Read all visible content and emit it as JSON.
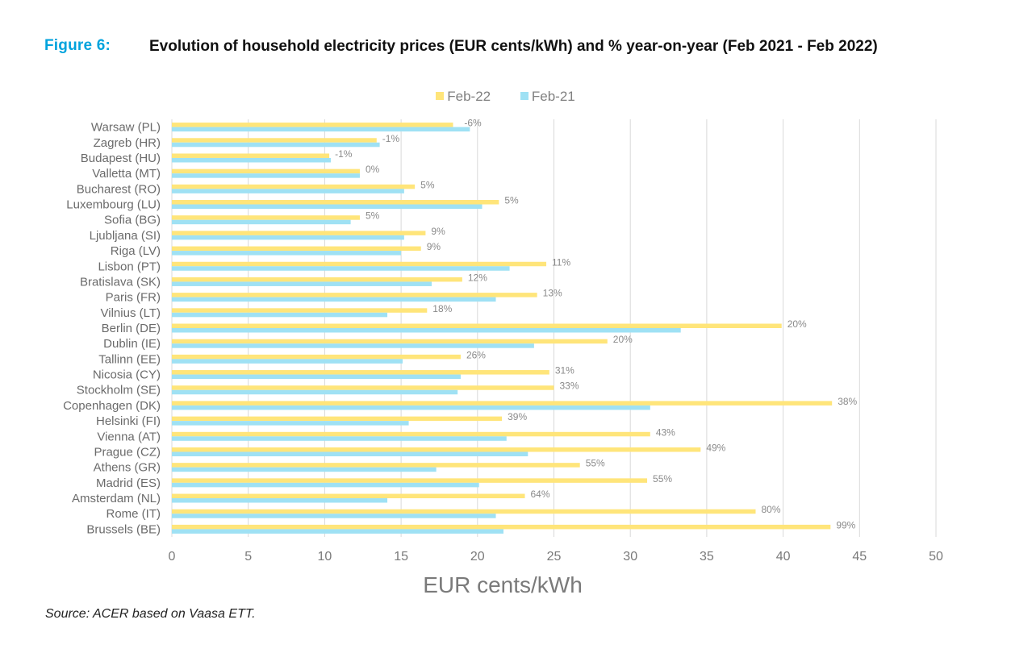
{
  "figure": {
    "number_label": "Figure 6:",
    "title": "Evolution of household electricity prices (EUR cents/kWh) and % year-on-year (Feb 2021 - Feb 2022)"
  },
  "source_note": "Source: ACER based on Vaasa ETT.",
  "colors": {
    "figure_number": "#00A3DD",
    "feb22": "#FFE57A",
    "feb21": "#9FE1F4",
    "grid": "#D9D9D9"
  },
  "chart_data": {
    "type": "bar",
    "orientation": "horizontal",
    "title": "Evolution of household electricity prices (EUR cents/kWh) and % year-on-year (Feb 2021 - Feb 2022)",
    "xlabel": "EUR cents/kWh",
    "ylabel": "",
    "xlim": [
      0,
      50
    ],
    "xticks": [
      0,
      5,
      10,
      15,
      20,
      25,
      30,
      35,
      40,
      45,
      50
    ],
    "grid": true,
    "legend_position": "top-center",
    "categories": [
      "Warsaw (PL)",
      "Zagreb (HR)",
      "Budapest (HU)",
      "Valletta (MT)",
      "Bucharest (RO)",
      "Luxembourg (LU)",
      "Sofia (BG)",
      "Ljubljana (SI)",
      "Riga (LV)",
      "Lisbon (PT)",
      "Bratislava (SK)",
      "Paris (FR)",
      "Vilnius (LT)",
      "Berlin (DE)",
      "Dublin (IE)",
      "Tallinn (EE)",
      "Nicosia (CY)",
      "Stockholm (SE)",
      "Copenhagen (DK)",
      "Helsinki (FI)",
      "Vienna (AT)",
      "Prague (CZ)",
      "Athens (GR)",
      "Madrid (ES)",
      "Amsterdam (NL)",
      "Rome (IT)",
      "Brussels (BE)"
    ],
    "series": [
      {
        "name": "Feb-22",
        "values": [
          18.4,
          13.4,
          10.3,
          12.3,
          15.9,
          21.4,
          12.3,
          16.6,
          16.3,
          24.5,
          19.0,
          23.9,
          16.7,
          39.9,
          28.5,
          18.9,
          24.7,
          25.0,
          43.2,
          21.6,
          31.3,
          34.6,
          26.7,
          31.1,
          23.1,
          38.2,
          43.1
        ]
      },
      {
        "name": "Feb-21",
        "values": [
          19.5,
          13.6,
          10.4,
          12.3,
          15.2,
          20.3,
          11.7,
          15.2,
          15.0,
          22.1,
          17.0,
          21.2,
          14.1,
          33.3,
          23.7,
          15.1,
          18.9,
          18.7,
          31.3,
          15.5,
          21.9,
          23.3,
          17.3,
          20.1,
          14.1,
          21.2,
          21.7
        ]
      }
    ],
    "annotations": {
      "yoy_change": [
        "-6%",
        "-1%",
        "-1%",
        "0%",
        "5%",
        "5%",
        "5%",
        "9%",
        "9%",
        "11%",
        "12%",
        "13%",
        "18%",
        "20%",
        "20%",
        "26%",
        "31%",
        "33%",
        "38%",
        "39%",
        "43%",
        "49%",
        "55%",
        "55%",
        "64%",
        "80%",
        "99%"
      ]
    }
  }
}
